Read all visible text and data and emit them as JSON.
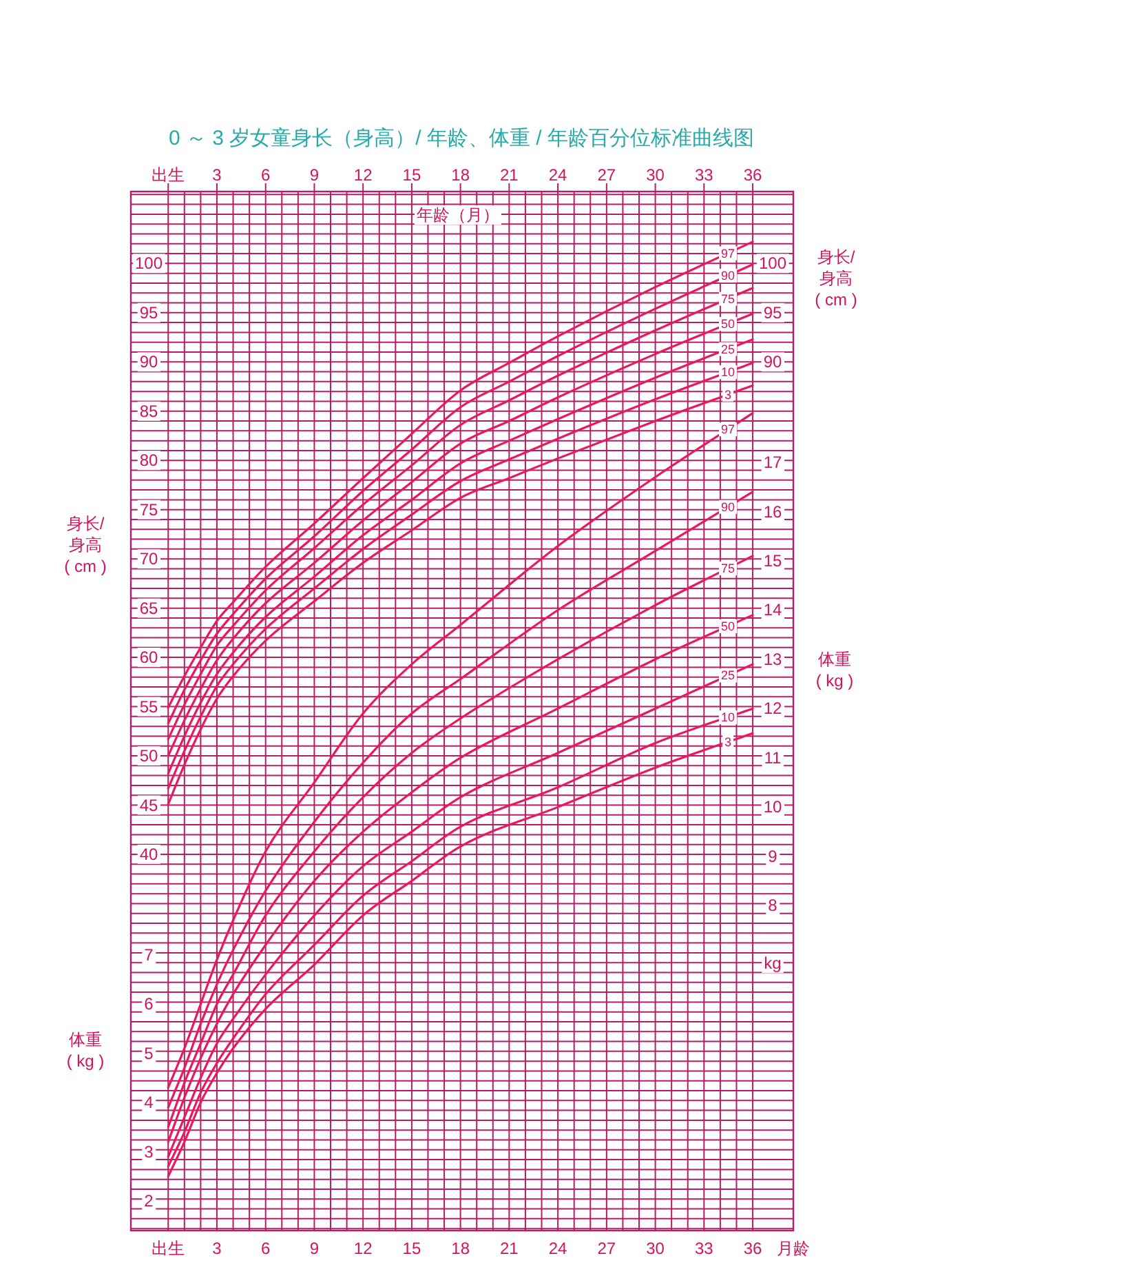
{
  "chart_data": {
    "type": "line",
    "title": "0 ～ 3 岁女童身长（身高）/ 年龄、体重 / 年龄百分位标准曲线图",
    "xlabel": "月龄",
    "x2label": "年龄（月）",
    "ylabel": "身长/\n身高\n( cm )",
    "y2label": "体重\n( kg )",
    "y3label": "体重\n( kg )",
    "annotations": [
      "身长/\n身高\n( cm )",
      "kg",
      {
        "text": "90",
        "y": 90
      },
      {
        "text": "95",
        "y": 95
      },
      {
        "text": "100",
        "y": 100
      }
    ],
    "xlim": [
      -2.3,
      38.5
    ],
    "xticks": [
      {
        "value": 0,
        "label": "出生"
      },
      3,
      6,
      9,
      12,
      15,
      18,
      21,
      24,
      27,
      30,
      33,
      36
    ],
    "x2lim": [
      -2.3,
      38.5
    ],
    "x2ticks": [
      {
        "value": 0,
        "label": "出生"
      },
      3,
      6,
      9,
      12,
      15,
      18,
      21,
      24,
      27,
      30,
      33,
      36
    ],
    "ylim": [
      1.8,
      107.3
    ],
    "yticks": [
      40,
      45,
      50,
      55,
      60,
      65,
      70,
      75,
      80,
      85,
      90,
      95,
      100
    ],
    "y2lim": [
      1.4,
      22.5
    ],
    "y2ticks": [
      8,
      9,
      10,
      11,
      12,
      13,
      14,
      15,
      16,
      17
    ],
    "y3lim": [
      1.4,
      22.5
    ],
    "y3ticks": [
      2,
      3,
      4,
      5,
      6,
      7
    ],
    "grid": true,
    "series": [
      {
        "name": "3",
        "color": "#e8195c",
        "x": [
          0,
          1,
          2,
          3,
          4,
          6,
          9,
          12,
          15,
          18,
          21,
          24,
          30,
          36
        ],
        "values": [
          45.1,
          49.1,
          52.7,
          55.8,
          58.1,
          61.7,
          65.7,
          69.6,
          72.9,
          76.2,
          78.2,
          80.2,
          84.0,
          87.6
        ]
      },
      {
        "name": "10",
        "color": "#e8195c",
        "x": [
          0,
          1,
          2,
          3,
          4,
          6,
          9,
          12,
          15,
          18,
          21,
          24,
          30,
          36
        ],
        "values": [
          46.7,
          50.5,
          54.0,
          57.1,
          59.3,
          62.9,
          67.0,
          71.0,
          74.5,
          77.9,
          80.1,
          82.2,
          86.2,
          89.9
        ]
      },
      {
        "name": "25",
        "color": "#e8195c",
        "x": [
          0,
          1,
          2,
          3,
          4,
          6,
          9,
          12,
          15,
          18,
          21,
          24,
          30,
          36
        ],
        "values": [
          48.2,
          52.0,
          55.4,
          58.3,
          60.5,
          64.1,
          68.2,
          72.4,
          76.0,
          79.7,
          82.0,
          84.2,
          88.4,
          92.3
        ]
      },
      {
        "name": "50",
        "color": "#e8195c",
        "x": [
          0,
          1,
          2,
          3,
          4,
          6,
          9,
          12,
          15,
          18,
          21,
          24,
          30,
          36
        ],
        "values": [
          50.0,
          53.6,
          56.8,
          59.7,
          61.9,
          65.5,
          69.6,
          73.9,
          77.8,
          81.7,
          84.0,
          86.4,
          90.8,
          94.9
        ]
      },
      {
        "name": "75",
        "color": "#e8195c",
        "x": [
          0,
          1,
          2,
          3,
          4,
          6,
          9,
          12,
          15,
          18,
          21,
          24,
          30,
          36
        ],
        "values": [
          51.7,
          55.2,
          58.3,
          61.2,
          63.2,
          66.8,
          71.1,
          75.5,
          79.5,
          83.6,
          86.1,
          88.6,
          93.2,
          97.5
        ]
      },
      {
        "name": "90",
        "color": "#e8195c",
        "x": [
          0,
          1,
          2,
          3,
          4,
          6,
          9,
          12,
          15,
          18,
          21,
          24,
          30,
          36
        ],
        "values": [
          53.3,
          56.7,
          59.7,
          62.4,
          64.4,
          68.0,
          72.3,
          76.9,
          81.1,
          85.4,
          88.0,
          90.6,
          95.4,
          99.9
        ]
      },
      {
        "name": "97",
        "color": "#e8195c",
        "x": [
          0,
          1,
          2,
          3,
          4,
          6,
          9,
          12,
          15,
          18,
          21,
          24,
          30,
          36
        ],
        "values": [
          54.9,
          58.1,
          61.0,
          63.7,
          65.6,
          69.2,
          73.6,
          78.2,
          82.7,
          87.1,
          89.9,
          92.6,
          97.6,
          102.2
        ]
      },
      {
        "name": "3",
        "color": "#e8195c",
        "axis": "y2",
        "x": [
          0,
          1,
          2,
          3,
          4,
          6,
          9,
          12,
          15,
          18,
          24,
          30,
          36
        ],
        "values": [
          2.5,
          3.2,
          4.0,
          4.6,
          5.1,
          5.9,
          6.8,
          7.8,
          8.5,
          9.2,
          10.0,
          10.8,
          11.5
        ]
      },
      {
        "name": "10",
        "color": "#e8195c",
        "axis": "y2",
        "x": [
          0,
          1,
          2,
          3,
          4,
          6,
          9,
          12,
          15,
          18,
          24,
          30,
          36
        ],
        "values": [
          2.7,
          3.4,
          4.2,
          4.8,
          5.3,
          6.2,
          7.2,
          8.2,
          8.9,
          9.6,
          10.4,
          11.3,
          12.0
        ]
      },
      {
        "name": "25",
        "color": "#e8195c",
        "axis": "y2",
        "x": [
          0,
          1,
          2,
          3,
          4,
          6,
          9,
          12,
          15,
          18,
          24,
          30,
          36
        ],
        "values": [
          2.9,
          3.7,
          4.5,
          5.2,
          5.7,
          6.6,
          7.8,
          8.8,
          9.5,
          10.2,
          11.1,
          12.0,
          12.9
        ]
      },
      {
        "name": "50",
        "color": "#e8195c",
        "axis": "y2",
        "x": [
          0,
          1,
          2,
          3,
          4,
          6,
          9,
          12,
          15,
          18,
          24,
          30,
          36
        ],
        "values": [
          3.2,
          4.1,
          4.9,
          5.6,
          6.2,
          7.2,
          8.5,
          9.5,
          10.3,
          11.0,
          12.0,
          13.0,
          13.9
        ]
      },
      {
        "name": "75",
        "color": "#e8195c",
        "axis": "y2",
        "x": [
          0,
          1,
          2,
          3,
          4,
          6,
          9,
          12,
          15,
          18,
          24,
          30,
          36
        ],
        "values": [
          3.5,
          4.4,
          5.2,
          6.0,
          6.6,
          7.8,
          9.1,
          10.2,
          11.1,
          11.8,
          13.0,
          14.1,
          15.1
        ]
      },
      {
        "name": "90",
        "color": "#e8195c",
        "axis": "y2",
        "x": [
          0,
          1,
          2,
          3,
          4,
          6,
          9,
          12,
          15,
          18,
          24,
          30,
          36
        ],
        "values": [
          3.9,
          4.7,
          5.6,
          6.4,
          7.1,
          8.3,
          9.7,
          10.9,
          11.9,
          12.6,
          14.0,
          15.2,
          16.4
        ]
      },
      {
        "name": "97",
        "color": "#e8195c",
        "axis": "y2",
        "x": [
          0,
          1,
          2,
          3,
          4,
          6,
          9,
          12,
          15,
          18,
          24,
          30,
          36
        ],
        "values": [
          4.3,
          5.1,
          6.0,
          6.9,
          7.7,
          9.1,
          10.5,
          11.9,
          12.9,
          13.7,
          15.3,
          16.7,
          18.0
        ]
      }
    ]
  }
}
